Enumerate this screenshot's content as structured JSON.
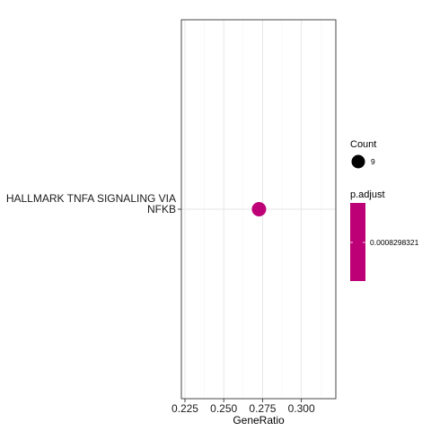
{
  "chart_data": {
    "type": "scatter",
    "xlabel": "GeneRatio",
    "ylabel": "",
    "x_ticks": [
      "0.225",
      "0.250",
      "0.275",
      "0.300"
    ],
    "x_tick_values": [
      0.225,
      0.25,
      0.275,
      0.3
    ],
    "xlim": [
      0.2227,
      0.3222
    ],
    "categories": [
      "HALLMARK TNFA SIGNALING VIA NFKB"
    ],
    "category_label_lines": [
      [
        "HALLMARK TNFA SIGNALING VIA",
        "NFKB"
      ]
    ],
    "points": [
      {
        "term": "HALLMARK TNFA SIGNALING VIA NFKB",
        "gene_ratio": 0.2727,
        "count": 9,
        "p_adjust": 0.0008298321
      }
    ],
    "grid": true,
    "legend_position": "right",
    "legends": {
      "size": {
        "title": "Count",
        "values": [
          "9"
        ]
      },
      "color": {
        "title": "p.adjust",
        "values": [
          "0.0008298321"
        ],
        "color": "#be0077"
      }
    }
  }
}
